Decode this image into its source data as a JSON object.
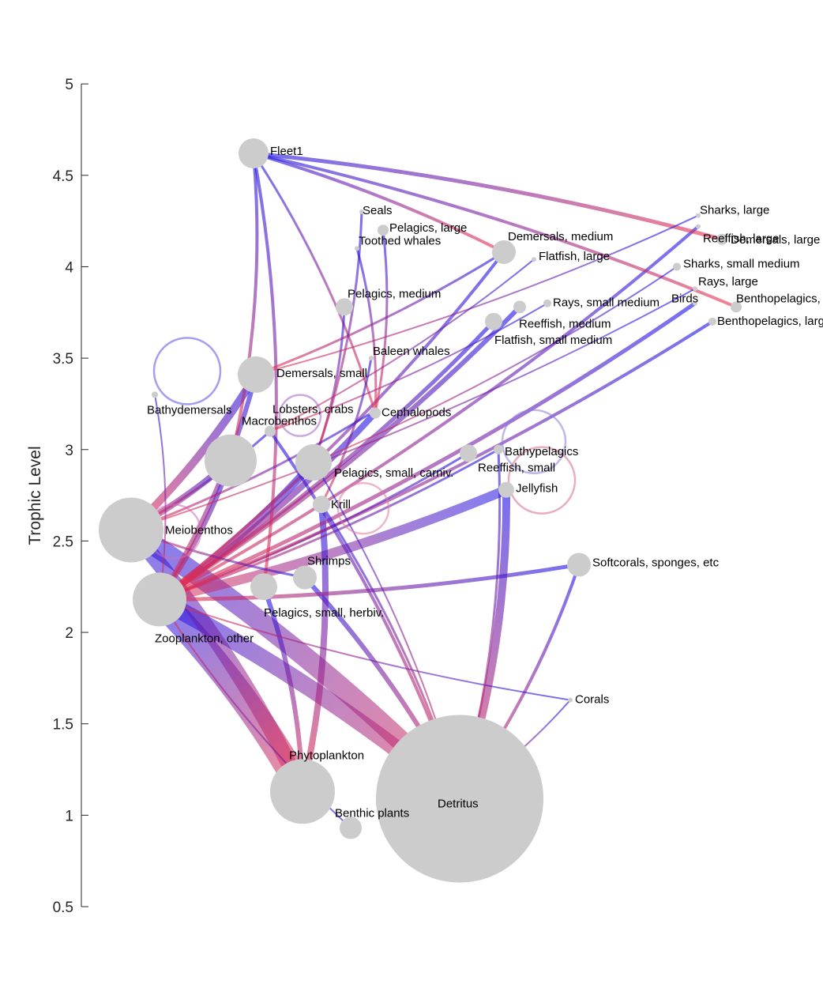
{
  "y_axis": {
    "title": "Trophic Level",
    "range": [
      0.5,
      5
    ],
    "ticks": [
      "5",
      "4.5",
      "4",
      "3.5",
      "3",
      "2.5",
      "2",
      "1.5",
      "1",
      "0.5"
    ]
  },
  "colors": {
    "node": "#cccccc",
    "pred_end": "#1a10e8",
    "prey_end": "#ec2f49"
  },
  "nodes": [
    {
      "id": "fleet1",
      "label": "Fleet1",
      "tl": 4.62
    },
    {
      "id": "seals",
      "label": "Seals",
      "tl": 4.3
    },
    {
      "id": "pelagics_large",
      "label": "Pelagics, large",
      "tl": 4.2
    },
    {
      "id": "toothed_whales",
      "label": "Toothed whales",
      "tl": 4.1
    },
    {
      "id": "demersals_medium",
      "label": "Demersals, medium",
      "tl": 4.08
    },
    {
      "id": "flatfish_large",
      "label": "Flatfish, large",
      "tl": 4.04
    },
    {
      "id": "sharks_large",
      "label": "Sharks, large",
      "tl": 4.28
    },
    {
      "id": "reeffish_large",
      "label": "Reeffish, large",
      "tl": 4.22
    },
    {
      "id": "demersals_large",
      "label": "Demersals, large",
      "tl": 4.15
    },
    {
      "id": "sharks_small_medium",
      "label": "Sharks, small medium",
      "tl": 4.0
    },
    {
      "id": "rays_large",
      "label": "Rays, large",
      "tl": 3.88
    },
    {
      "id": "pelagics_medium",
      "label": "Pelagics, medium",
      "tl": 3.78
    },
    {
      "id": "rays_small_medium",
      "label": "Rays, small medium",
      "tl": 3.8
    },
    {
      "id": "birds",
      "label": "Birds",
      "tl": 3.8
    },
    {
      "id": "benthopelagics_medium",
      "label": "Benthopelagics, medium",
      "tl": 3.78
    },
    {
      "id": "reeffish_medium",
      "label": "Reeffish, medium",
      "tl": 3.78
    },
    {
      "id": "benthopelagics_large",
      "label": "Benthopelagics, large",
      "tl": 3.7
    },
    {
      "id": "flatfish_small_medium",
      "label": "Flatfish, small medium",
      "tl": 3.7
    },
    {
      "id": "baleen_whales",
      "label": "Baleen whales",
      "tl": 3.5
    },
    {
      "id": "demersals_small",
      "label": "Demersals, small",
      "tl": 3.41
    },
    {
      "id": "bathydemersals",
      "label": "Bathydemersals",
      "tl": 3.3
    },
    {
      "id": "lobsters_crabs",
      "label": "Lobsters, crabs",
      "tl": 3.2
    },
    {
      "id": "cephalopods",
      "label": "Cephalopods",
      "tl": 3.2
    },
    {
      "id": "macrobenthos",
      "label": "Macrobenthos",
      "tl": 3.1
    },
    {
      "id": "bathypelagics",
      "label": "Bathypelagics",
      "tl": 3.0
    },
    {
      "id": "reeffish_small",
      "label": "Reeffish, small",
      "tl": 2.98
    },
    {
      "id": "pelagics_small_carniv",
      "label": "Pelagics, small, carniv.",
      "tl": 2.93
    },
    {
      "id": "mesopelagics",
      "label": "",
      "tl": 2.94
    },
    {
      "id": "jellyfish",
      "label": "Jellyfish",
      "tl": 2.78
    },
    {
      "id": "krill",
      "label": "Krill",
      "tl": 2.7
    },
    {
      "id": "meiobenthos",
      "label": "Meiobenthos",
      "tl": 2.56
    },
    {
      "id": "shrimps",
      "label": "Shrimps",
      "tl": 2.3
    },
    {
      "id": "softcorals",
      "label": "Softcorals, sponges, etc",
      "tl": 2.37
    },
    {
      "id": "pelagics_small_herbiv",
      "label": "Pelagics, small, herbiv.",
      "tl": 2.25
    },
    {
      "id": "zooplankton_other",
      "label": "Zooplankton, other",
      "tl": 2.18
    },
    {
      "id": "corals",
      "label": "Corals",
      "tl": 1.63
    },
    {
      "id": "phytoplankton",
      "label": "Phytoplankton",
      "tl": 1.13
    },
    {
      "id": "detritus",
      "label": "Detritus",
      "tl": 1.09
    },
    {
      "id": "benthic_plants",
      "label": "Benthic plants",
      "tl": 0.93
    }
  ],
  "links": [
    [
      "zooplankton_other",
      "phytoplankton"
    ],
    [
      "meiobenthos",
      "detritus"
    ],
    [
      "zooplankton_other",
      "detritus"
    ],
    [
      "meiobenthos",
      "phytoplankton"
    ],
    [
      "jellyfish",
      "zooplankton_other"
    ],
    [
      "jellyfish",
      "detritus"
    ],
    [
      "mesopelagics",
      "meiobenthos"
    ],
    [
      "mesopelagics",
      "zooplankton_other"
    ],
    [
      "shrimps",
      "detritus"
    ],
    [
      "pelagics_small_herbiv",
      "phytoplankton"
    ],
    [
      "krill",
      "phytoplankton"
    ],
    [
      "pelagics_small_carniv",
      "zooplankton_other"
    ],
    [
      "demersals_small",
      "meiobenthos"
    ],
    [
      "demersals_small",
      "zooplankton_other"
    ],
    [
      "cephalopods",
      "zooplankton_other"
    ],
    [
      "reeffish_medium",
      "zooplankton_other"
    ],
    [
      "flatfish_small_medium",
      "zooplankton_other"
    ],
    [
      "birds",
      "zooplankton_other"
    ],
    [
      "benthopelagics_large",
      "zooplankton_other"
    ],
    [
      "reeffish_large",
      "zooplankton_other"
    ],
    [
      "demersals_medium",
      "zooplankton_other"
    ],
    [
      "fleet1",
      "pelagics_small_herbiv"
    ],
    [
      "fleet1",
      "mesopelagics"
    ],
    [
      "fleet1",
      "demersals_medium"
    ],
    [
      "fleet1",
      "demersals_large"
    ],
    [
      "fleet1",
      "benthopelagics_medium"
    ],
    [
      "fleet1",
      "cephalopods"
    ],
    [
      "seals",
      "pelagics_small_carniv"
    ],
    [
      "toothed_whales",
      "cephalopods"
    ],
    [
      "pelagics_large",
      "cephalopods"
    ],
    [
      "pelagics_medium",
      "pelagics_small_carniv"
    ],
    [
      "softcorals",
      "zooplankton_other"
    ],
    [
      "softcorals",
      "detritus"
    ],
    [
      "corals",
      "detritus"
    ],
    [
      "corals",
      "zooplankton_other"
    ],
    [
      "benthic_plants",
      "zooplankton_other"
    ],
    [
      "reeffish_small",
      "zooplankton_other"
    ],
    [
      "bathypelagics",
      "zooplankton_other"
    ],
    [
      "bathypelagics",
      "detritus"
    ],
    [
      "lobsters_crabs",
      "meiobenthos"
    ],
    [
      "macrobenthos",
      "detritus"
    ],
    [
      "macrobenthos",
      "meiobenthos"
    ],
    [
      "sharks_large",
      "demersals_small"
    ],
    [
      "sharks_small_medium",
      "pelagics_small_carniv"
    ],
    [
      "rays_large",
      "meiobenthos"
    ],
    [
      "rays_small_medium",
      "macrobenthos"
    ],
    [
      "demersals_medium",
      "demersals_small"
    ],
    [
      "flatfish_large",
      "macrobenthos"
    ],
    [
      "baleen_whales",
      "krill"
    ],
    [
      "bathydemersals",
      "zooplankton_other"
    ],
    [
      "krill",
      "detritus"
    ],
    [
      "shrimps",
      "meiobenthos"
    ],
    [
      "pelagics_small_carniv",
      "detritus"
    ]
  ],
  "self_loops": [
    "bathydemersals",
    "jellyfish",
    "bathypelagics",
    "krill",
    "meiobenthos",
    "macrobenthos"
  ]
}
